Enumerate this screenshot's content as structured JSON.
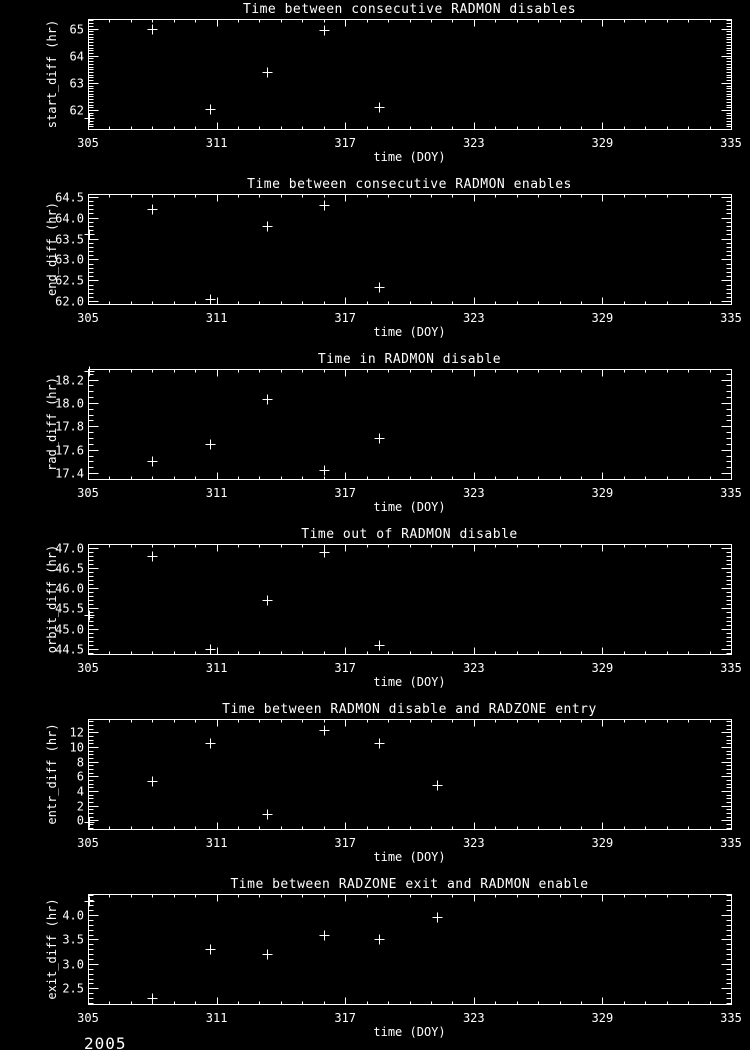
{
  "page": {
    "background": "#000000",
    "foreground": "#ffffff",
    "year_label": "2005"
  },
  "chart_data": [
    {
      "type": "scatter",
      "title": "Time between consecutive RADMON disables",
      "xlabel": "time (DOY)",
      "ylabel": "start_diff (hr)",
      "xlim": [
        305,
        335
      ],
      "ylim": [
        61.3,
        65.35
      ],
      "xticks": [
        305,
        311,
        317,
        323,
        329,
        335
      ],
      "xtick_labels": [
        "305",
        "311",
        "317",
        "323",
        "329",
        "335"
      ],
      "x_minor_step": 1,
      "yticks": [
        62,
        63,
        64,
        65
      ],
      "ytick_labels": [
        "62",
        "63",
        "64",
        "65"
      ],
      "y_minor_div": 10,
      "grid": false,
      "marker": "plus",
      "marker_color": "#ffffff",
      "x": [
        305.05,
        308.0,
        310.7,
        313.35,
        316.0,
        318.6
      ],
      "y": [
        61.7,
        65.0,
        62.05,
        63.4,
        64.95,
        62.1
      ]
    },
    {
      "type": "scatter",
      "title": "Time between consecutive RADMON enables",
      "xlabel": "time (DOY)",
      "ylabel": "end_diff (hr)",
      "xlim": [
        305,
        335
      ],
      "ylim": [
        61.94,
        64.56
      ],
      "xticks": [
        305,
        311,
        317,
        323,
        329,
        335
      ],
      "xtick_labels": [
        "305",
        "311",
        "317",
        "323",
        "329",
        "335"
      ],
      "x_minor_step": 1,
      "yticks": [
        62.0,
        62.5,
        63.0,
        63.5,
        64.0,
        64.5
      ],
      "ytick_labels": [
        "62.0",
        "62.5",
        "63.0",
        "63.5",
        "64.0",
        "64.5"
      ],
      "y_minor_div": 5,
      "grid": false,
      "marker": "plus",
      "marker_color": "#ffffff",
      "x": [
        305.05,
        308.0,
        310.7,
        313.35,
        316.0,
        318.6
      ],
      "y": [
        63.6,
        64.2,
        62.05,
        63.8,
        64.3,
        62.35
      ]
    },
    {
      "type": "scatter",
      "title": "Time in RADMON disable",
      "xlabel": "time (DOY)",
      "ylabel": "rad_diff (hr)",
      "xlim": [
        305,
        335
      ],
      "ylim": [
        17.35,
        18.29
      ],
      "xticks": [
        305,
        311,
        317,
        323,
        329,
        335
      ],
      "xtick_labels": [
        "305",
        "311",
        "317",
        "323",
        "329",
        "335"
      ],
      "x_minor_step": 1,
      "yticks": [
        17.4,
        17.6,
        17.8,
        18.0,
        18.2
      ],
      "ytick_labels": [
        "17.4",
        "17.6",
        "17.8",
        "18.0",
        "18.2"
      ],
      "y_minor_div": 4,
      "grid": false,
      "marker": "plus",
      "marker_color": "#ffffff",
      "x": [
        305.05,
        308.0,
        310.7,
        313.35,
        316.0,
        318.6
      ],
      "y": [
        18.27,
        17.5,
        17.65,
        18.03,
        17.43,
        17.7
      ]
    },
    {
      "type": "scatter",
      "title": "Time out of RADMON disable",
      "xlabel": "time (DOY)",
      "ylabel": "orbit_diff (hr)",
      "xlim": [
        305,
        335
      ],
      "ylim": [
        44.37,
        47.1
      ],
      "xticks": [
        305,
        311,
        317,
        323,
        329,
        335
      ],
      "xtick_labels": [
        "305",
        "311",
        "317",
        "323",
        "329",
        "335"
      ],
      "x_minor_step": 1,
      "yticks": [
        44.5,
        45.0,
        45.5,
        46.0,
        46.5,
        47.0
      ],
      "ytick_labels": [
        "44.5",
        "45.0",
        "45.5",
        "46.0",
        "46.5",
        "47.0"
      ],
      "y_minor_div": 5,
      "grid": false,
      "marker": "plus",
      "marker_color": "#ffffff",
      "x": [
        305.05,
        308.0,
        310.7,
        313.35,
        316.0,
        318.6
      ],
      "y": [
        45.35,
        46.8,
        44.5,
        45.7,
        46.9,
        44.6
      ]
    },
    {
      "type": "scatter",
      "title": "Time between RADMON disable and RADZONE entry",
      "xlabel": "time (DOY)",
      "ylabel": "entr_diff (hr)",
      "xlim": [
        305,
        335
      ],
      "ylim": [
        -1.2,
        13.8
      ],
      "xticks": [
        305,
        311,
        317,
        323,
        329,
        335
      ],
      "xtick_labels": [
        "305",
        "311",
        "317",
        "323",
        "329",
        "335"
      ],
      "x_minor_step": 1,
      "yticks": [
        0,
        2,
        4,
        6,
        8,
        10,
        12
      ],
      "ytick_labels": [
        "0",
        "2",
        "4",
        "6",
        "8",
        "10",
        "12"
      ],
      "y_minor_div": 4,
      "grid": false,
      "marker": "plus",
      "marker_color": "#ffffff",
      "x": [
        305.05,
        308.0,
        310.7,
        313.35,
        316.0,
        318.6,
        321.3
      ],
      "y": [
        -0.2,
        5.3,
        10.5,
        0.9,
        12.3,
        10.5,
        4.8
      ]
    },
    {
      "type": "scatter",
      "title": "Time between RADZONE exit and RADMON enable",
      "xlabel": "time (DOY)",
      "ylabel": "exit_diff (hr)",
      "xlim": [
        305,
        335
      ],
      "ylim": [
        2.18,
        4.43
      ],
      "xticks": [
        305,
        311,
        317,
        323,
        329,
        335
      ],
      "xtick_labels": [
        "305",
        "311",
        "317",
        "323",
        "329",
        "335"
      ],
      "x_minor_step": 1,
      "yticks": [
        2.5,
        3.0,
        3.5,
        4.0
      ],
      "ytick_labels": [
        "2.5",
        "3.0",
        "3.5",
        "4.0"
      ],
      "y_minor_div": 5,
      "grid": false,
      "marker": "plus",
      "marker_color": "#ffffff",
      "x": [
        305.05,
        308.0,
        310.7,
        313.35,
        316.0,
        318.6,
        321.3
      ],
      "y": [
        4.28,
        2.3,
        3.3,
        3.2,
        3.6,
        3.5,
        3.95
      ]
    }
  ]
}
